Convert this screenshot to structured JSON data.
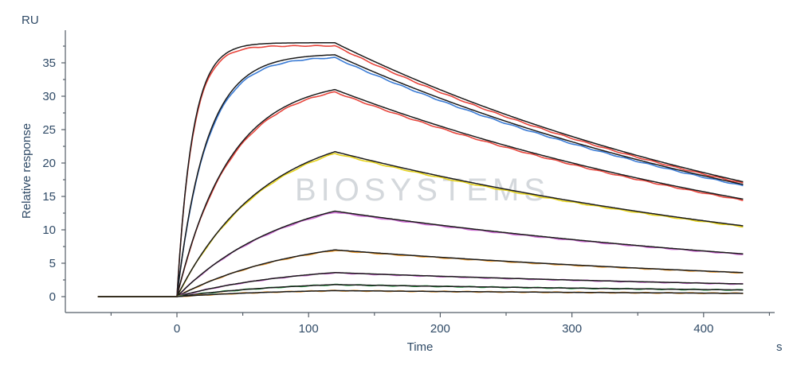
{
  "watermark": "BIOSYSTEMS",
  "chart_data": {
    "type": "line",
    "xlabel": "Time",
    "xunit": "s",
    "ylabel": "Relative response",
    "yunit": "RU",
    "xlim": [
      -65,
      435
    ],
    "ylim": [
      -2,
      39.5
    ],
    "xticks": [
      0,
      100,
      200,
      300,
      400
    ],
    "yticks": [
      0,
      5,
      10,
      15,
      20,
      25,
      30,
      35
    ],
    "grid": false,
    "legend": "none",
    "x_start": -60,
    "association_start": 0,
    "dissociation_start": 120,
    "x_end": 430,
    "series": [
      {
        "peak": 38.0,
        "end": 17.2,
        "rise_k": 0.085,
        "raw_color": "#e8453c",
        "fit_color": "#1a1a1a"
      },
      {
        "peak": 36.2,
        "end": 16.8,
        "rise_k": 0.045,
        "raw_color": "#3a7bd5",
        "fit_color": "#1a1a1a"
      },
      {
        "peak": 31.0,
        "end": 14.6,
        "rise_k": 0.025,
        "raw_color": "#e8453c",
        "fit_color": "#1a1a1a"
      },
      {
        "peak": 21.7,
        "end": 10.6,
        "rise_k": 0.015,
        "raw_color": "#e6d21a",
        "fit_color": "#1a1a1a"
      },
      {
        "peak": 12.8,
        "end": 6.4,
        "rise_k": 0.012,
        "raw_color": "#d270d8",
        "fit_color": "#1a1a1a"
      },
      {
        "peak": 7.0,
        "end": 3.6,
        "rise_k": 0.011,
        "raw_color": "#f0a23a",
        "fit_color": "#1a1a1a"
      },
      {
        "peak": 3.6,
        "end": 1.9,
        "rise_k": 0.011,
        "raw_color": "#d270d8",
        "fit_color": "#1a1a1a"
      },
      {
        "peak": 1.8,
        "end": 1.0,
        "rise_k": 0.011,
        "raw_color": "#2ea84a",
        "fit_color": "#1a1a1a"
      },
      {
        "peak": 0.9,
        "end": 0.5,
        "rise_k": 0.011,
        "raw_color": "#f0a23a",
        "fit_color": "#1a1a1a"
      }
    ]
  }
}
